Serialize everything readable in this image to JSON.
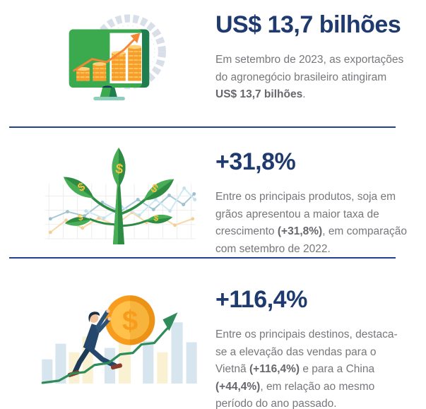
{
  "page": {
    "background": "#ffffff",
    "type": "agribusiness-exports-infographic"
  },
  "colors": {
    "headline_navy": "#1e3a6e",
    "divider_navy": "#24418c",
    "body_gray": "#77777c",
    "body_bold_gray": "#66666c",
    "bright_green": "#3baa4f",
    "dark_green": "#1e7e4d",
    "coin_orange": "#f59c27",
    "arrow_orange": "#f58634",
    "suit_navy": "#25476b",
    "coin_gold": "#ffc149",
    "ring_gray": "#d9dfe9"
  },
  "illustrations": {
    "currency_symbol": "$"
  },
  "sections": [
    {
      "id": "exports-total",
      "illustration": "monitor-coins-growth",
      "headline": "US$ 13,7 bilhões",
      "body": [
        {
          "t": "Em setembro de 2023, as exportações do agronegócio brasileiro atingiram ",
          "b": false
        },
        {
          "t": "US$ 13,7 bilhões",
          "b": true
        },
        {
          "t": ".",
          "b": false
        }
      ]
    },
    {
      "id": "soy-growth",
      "illustration": "money-plant-chart",
      "headline": "+31,8%",
      "body": [
        {
          "t": "Entre os principais produtos, soja em grãos apresentou a maior taxa de crescimento ",
          "b": false
        },
        {
          "t": "(+31,8%)",
          "b": true
        },
        {
          "t": ", em comparação com setembro de 2022.",
          "b": false
        }
      ]
    },
    {
      "id": "destinations-growth",
      "illustration": "man-pushing-coin",
      "headline": "+116,4%",
      "body": [
        {
          "t": "Entre os principais destinos, destaca-se a elevação das vendas para o Vietnã ",
          "b": false
        },
        {
          "t": "(+116,4%)",
          "b": true
        },
        {
          "t": " e para a China ",
          "b": false
        },
        {
          "t": "(+44,4%)",
          "b": true
        },
        {
          "t": ", em relação ao mesmo período do ano passado.",
          "b": false
        }
      ]
    }
  ]
}
